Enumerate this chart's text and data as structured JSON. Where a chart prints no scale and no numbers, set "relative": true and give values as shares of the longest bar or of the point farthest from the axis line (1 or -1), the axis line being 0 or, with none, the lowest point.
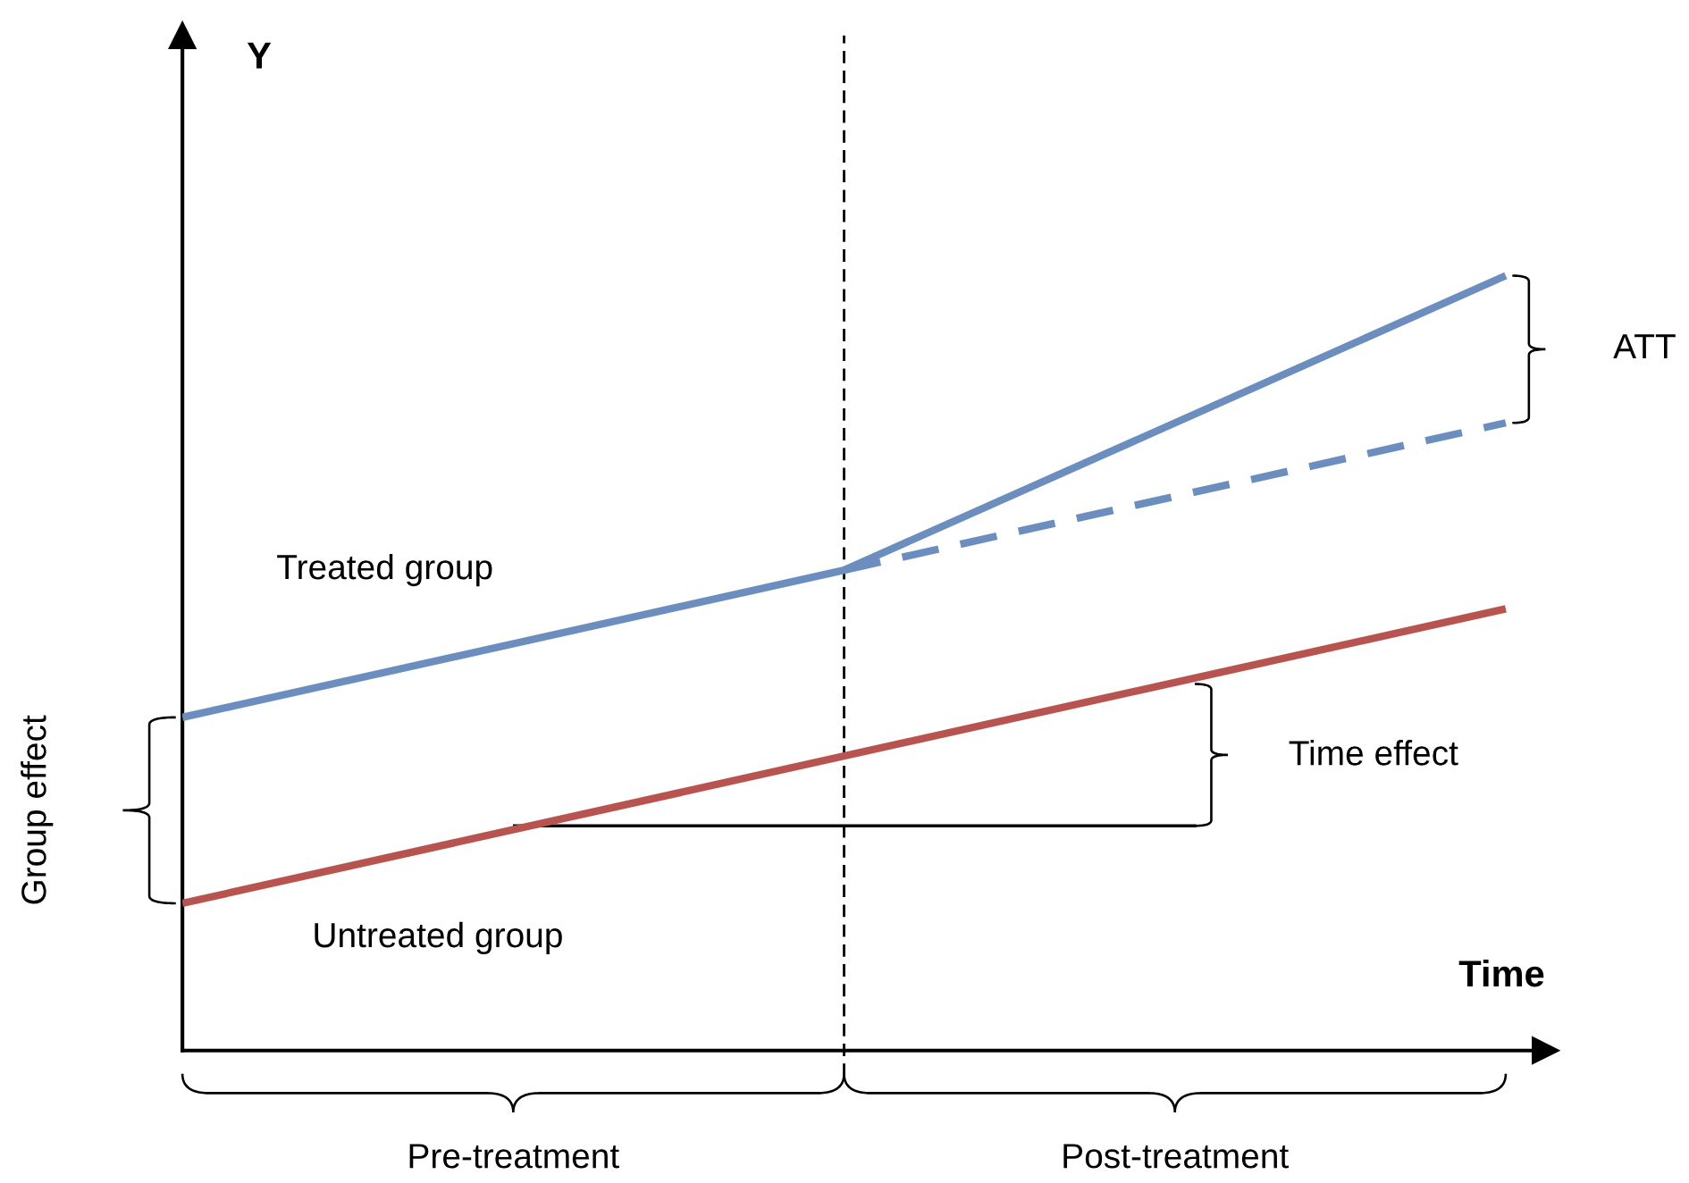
{
  "chart_data": {
    "type": "line",
    "relative": true,
    "xlabel": "Time",
    "categories": [
      null,
      null,
      null
    ],
    "series": [
      {
        "name": "Treated group",
        "color": "#6c8ebf",
        "values": [
          0.43,
          0.62,
          1
        ],
        "line_style": "solid"
      },
      {
        "color": "#6c8ebf",
        "values": [
          null,
          0.62,
          0.81
        ],
        "line_style": "dashed"
      },
      {
        "name": "Untreated group",
        "color": "#b85450",
        "values": [
          0.19,
          null,
          0.57
        ],
        "line_style": "solid"
      }
    ],
    "ref_lines": [
      {
        "axis": "y",
        "value": 0.29,
        "color": "#000000",
        "line_style": "solid"
      }
    ],
    "annotations": [
      "Time effect",
      "ATT",
      "Group effect",
      "Pre-treatment",
      "Post-treatment",
      "Y"
    ]
  }
}
